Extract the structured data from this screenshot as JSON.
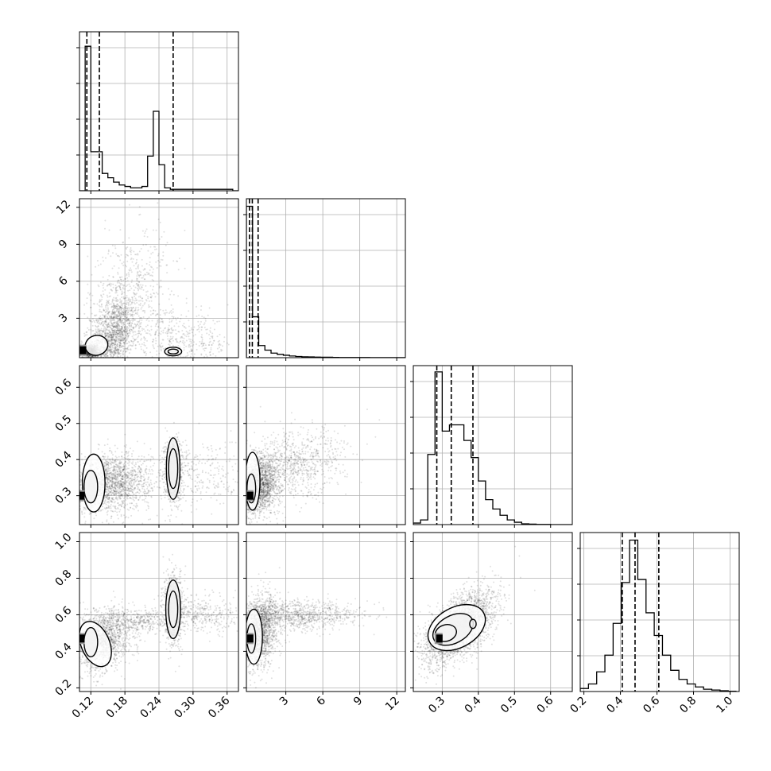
{
  "chart_data": {
    "type": "corner",
    "colors": {
      "axes": "#000000",
      "grid": "#b0b0b0",
      "points": "#000000",
      "background": "#ffffff"
    },
    "grid": true,
    "parameters": [
      {
        "index": 0,
        "range": [
          0.1,
          0.38
        ],
        "ticks": [
          "0.12",
          "0.18",
          "0.24",
          "0.30",
          "0.36"
        ],
        "tick_values": [
          0.12,
          0.18,
          0.24,
          0.3,
          0.36
        ]
      },
      {
        "index": 1,
        "range": [
          -0.2,
          12.7
        ],
        "ticks": [
          "3",
          "6",
          "9",
          "12"
        ],
        "tick_values": [
          3,
          6,
          9,
          12
        ]
      },
      {
        "index": 2,
        "range": [
          0.22,
          0.66
        ],
        "ticks": [
          "0.3",
          "0.4",
          "0.5",
          "0.6"
        ],
        "tick_values": [
          0.3,
          0.4,
          0.5,
          0.6
        ]
      },
      {
        "index": 3,
        "range": [
          0.18,
          1.05
        ],
        "ticks": [
          "0.2",
          "0.4",
          "0.6",
          "0.8",
          "1.0"
        ],
        "tick_values": [
          0.2,
          0.4,
          0.6,
          0.8,
          1.0
        ]
      }
    ],
    "histograms": [
      {
        "param": 0,
        "bin_edges": [
          0.1,
          0.11,
          0.12,
          0.13,
          0.14,
          0.15,
          0.16,
          0.17,
          0.18,
          0.19,
          0.2,
          0.21,
          0.22,
          0.23,
          0.24,
          0.25,
          0.26,
          0.27,
          0.28,
          0.29,
          0.3,
          0.31,
          0.32,
          0.33,
          0.34,
          0.35,
          0.36,
          0.37,
          0.38
        ],
        "counts": [
          0,
          100,
          27,
          27,
          12,
          9,
          6,
          4,
          3,
          2,
          2,
          3,
          24,
          55,
          18,
          2,
          1,
          1,
          1,
          1,
          1,
          1,
          1,
          1,
          1,
          1,
          1,
          0
        ],
        "quantiles": [
          0.113,
          0.135,
          0.265
        ],
        "ymax": 110
      },
      {
        "param": 1,
        "bin_edges": [
          -0.2,
          0.3,
          0.8,
          1.3,
          1.8,
          2.3,
          2.8,
          3.3,
          3.8,
          4.3,
          4.8,
          5.3,
          5.8,
          6.3,
          6.8,
          7.3,
          7.8,
          8.3,
          8.8,
          9.3,
          9.8,
          10.3,
          10.8,
          11.3,
          11.8,
          12.3,
          12.7
        ],
        "counts": [
          100,
          27,
          8,
          5,
          3,
          2.2,
          1.6,
          1.1,
          0.8,
          0.6,
          0.5,
          0.4,
          0.3,
          0.3,
          0.2,
          0.1,
          0.1,
          0.1,
          0.1,
          0.1,
          0.05,
          0.05,
          0.05,
          0.05,
          0.05,
          0.05
        ],
        "quantiles": [
          0.05,
          0.28,
          0.75
        ],
        "ymax": 105
      },
      {
        "param": 2,
        "bin_edges": [
          0.22,
          0.24,
          0.26,
          0.28,
          0.3,
          0.32,
          0.34,
          0.36,
          0.38,
          0.4,
          0.42,
          0.44,
          0.46,
          0.48,
          0.5,
          0.52,
          0.54,
          0.56,
          0.58,
          0.6,
          0.62,
          0.64,
          0.66
        ],
        "counts": [
          1,
          3,
          45,
          98,
          60,
          64,
          64,
          54,
          43,
          28,
          16,
          10,
          6,
          3,
          1.5,
          0.5,
          0.3,
          0.1,
          0.1,
          0,
          0,
          0
        ],
        "quantiles": [
          0.285,
          0.325,
          0.385
        ],
        "ymax": 102
      },
      {
        "param": 3,
        "bin_edges": [
          0.18,
          0.225,
          0.27,
          0.315,
          0.36,
          0.405,
          0.45,
          0.495,
          0.54,
          0.585,
          0.63,
          0.675,
          0.72,
          0.765,
          0.81,
          0.855,
          0.9,
          0.945,
          0.99,
          1.035
        ],
        "counts": [
          2,
          5,
          13,
          24,
          45,
          72,
          100,
          74,
          52,
          37,
          24,
          14,
          8,
          5,
          3,
          1.5,
          1,
          0.5,
          0.2
        ],
        "quantiles": [
          0.41,
          0.48,
          0.61
        ],
        "ymax": 105
      }
    ],
    "scatter_panels": [
      {
        "x_param": 0,
        "y_param": 1,
        "clusters": [
          {
            "cx": 0.16,
            "cy": 1.5,
            "sx": 0.02,
            "sy": 1.6,
            "n": 1400,
            "rho": 0.35
          },
          {
            "cx": 0.185,
            "cy": 5.0,
            "sx": 0.035,
            "sy": 2.6,
            "n": 600,
            "rho": 0.3
          },
          {
            "cx": 0.12,
            "cy": 0.3,
            "sx": 0.01,
            "sy": 0.3,
            "n": 800,
            "rho": 0
          },
          {
            "cx": 0.27,
            "cy": 1.2,
            "sx": 0.05,
            "sy": 1.2,
            "n": 500,
            "rho": -0.2
          }
        ],
        "contours": [
          {
            "cx": 0.13,
            "cy": 0.8,
            "rx": 0.02,
            "ry": 0.8,
            "rot": 0.25
          },
          {
            "cx": 0.265,
            "cy": 0.3,
            "rx": 0.015,
            "ry": 0.35,
            "rot": 0
          },
          {
            "cx": 0.265,
            "cy": 0.3,
            "rx": 0.009,
            "ry": 0.2,
            "rot": 0
          }
        ],
        "density_peaks": [
          {
            "x": 0.105,
            "y": 0.4,
            "fill": "#000000"
          }
        ]
      },
      {
        "x_param": 0,
        "y_param": 2,
        "clusters": [
          {
            "cx": 0.155,
            "cy": 0.335,
            "sx": 0.035,
            "sy": 0.04,
            "n": 1800,
            "rho": 0.1
          },
          {
            "cx": 0.265,
            "cy": 0.37,
            "sx": 0.008,
            "sy": 0.045,
            "n": 700,
            "rho": 0
          },
          {
            "cx": 0.31,
            "cy": 0.36,
            "sx": 0.04,
            "sy": 0.05,
            "n": 300,
            "rho": 0
          }
        ],
        "contours": [
          {
            "cx": 0.125,
            "cy": 0.335,
            "rx": 0.02,
            "ry": 0.08,
            "rot": 0
          },
          {
            "cx": 0.12,
            "cy": 0.325,
            "rx": 0.012,
            "ry": 0.045,
            "rot": 0
          },
          {
            "cx": 0.265,
            "cy": 0.375,
            "rx": 0.012,
            "ry": 0.085,
            "rot": 0
          },
          {
            "cx": 0.265,
            "cy": 0.375,
            "rx": 0.008,
            "ry": 0.055,
            "rot": 0
          }
        ],
        "density_peaks": [
          {
            "x": 0.102,
            "y": 0.3,
            "fill": "#000000"
          }
        ]
      },
      {
        "x_param": 1,
        "y_param": 2,
        "clusters": [
          {
            "cx": 0.8,
            "cy": 0.33,
            "sx": 0.8,
            "sy": 0.04,
            "n": 1800,
            "rho": 0.2
          },
          {
            "cx": 3.5,
            "cy": 0.38,
            "sx": 2.2,
            "sy": 0.05,
            "n": 900,
            "rho": 0.3
          }
        ],
        "contours": [
          {
            "cx": 0.3,
            "cy": 0.34,
            "rx": 0.6,
            "ry": 0.08,
            "rot": 0
          },
          {
            "cx": 0.2,
            "cy": 0.32,
            "rx": 0.35,
            "ry": 0.04,
            "rot": 0
          }
        ],
        "density_peaks": [
          {
            "x": 0.05,
            "y": 0.3,
            "fill": "#000000"
          }
        ]
      },
      {
        "x_param": 0,
        "y_param": 3,
        "clusters": [
          {
            "cx": 0.14,
            "cy": 0.46,
            "sx": 0.025,
            "sy": 0.08,
            "n": 1500,
            "rho": 0.2
          },
          {
            "cx": 0.265,
            "cy": 0.63,
            "sx": 0.009,
            "sy": 0.1,
            "n": 700,
            "rho": 0
          },
          {
            "cx": 0.31,
            "cy": 0.6,
            "sx": 0.04,
            "sy": 0.05,
            "n": 400,
            "rho": 0
          },
          {
            "cx": 0.2,
            "cy": 0.57,
            "sx": 0.035,
            "sy": 0.03,
            "n": 400,
            "rho": 0
          }
        ],
        "contours": [
          {
            "cx": 0.128,
            "cy": 0.44,
            "rx": 0.025,
            "ry": 0.13,
            "rot": 0.4
          },
          {
            "cx": 0.12,
            "cy": 0.45,
            "rx": 0.012,
            "ry": 0.08,
            "rot": 0
          },
          {
            "cx": 0.265,
            "cy": 0.63,
            "rx": 0.013,
            "ry": 0.16,
            "rot": 0
          },
          {
            "cx": 0.265,
            "cy": 0.63,
            "rx": 0.008,
            "ry": 0.1,
            "rot": 0
          }
        ],
        "density_peaks": [
          {
            "x": 0.102,
            "y": 0.47,
            "fill": "#000000"
          }
        ]
      },
      {
        "x_param": 1,
        "y_param": 3,
        "clusters": [
          {
            "cx": 0.8,
            "cy": 0.5,
            "sx": 0.8,
            "sy": 0.1,
            "n": 1800,
            "rho": 0.3
          },
          {
            "cx": 4.0,
            "cy": 0.6,
            "sx": 2.5,
            "sy": 0.04,
            "n": 900,
            "rho": 0
          }
        ],
        "contours": [
          {
            "cx": 0.4,
            "cy": 0.48,
            "rx": 0.7,
            "ry": 0.15,
            "rot": 0
          },
          {
            "cx": 0.2,
            "cy": 0.47,
            "rx": 0.35,
            "ry": 0.08,
            "rot": 0
          }
        ],
        "density_peaks": [
          {
            "x": 0.05,
            "y": 0.47,
            "fill": "#000000"
          }
        ]
      },
      {
        "x_param": 2,
        "y_param": 3,
        "clusters": [
          {
            "cx": 0.345,
            "cy": 0.53,
            "sx": 0.05,
            "sy": 0.1,
            "n": 2600,
            "rho": 0.6
          }
        ],
        "contours": [
          {
            "cx": 0.34,
            "cy": 0.53,
            "rx": 0.085,
            "ry": 0.11,
            "rot": 0.5
          },
          {
            "cx": 0.33,
            "cy": 0.52,
            "rx": 0.06,
            "ry": 0.075,
            "rot": 0.5
          },
          {
            "cx": 0.31,
            "cy": 0.5,
            "rx": 0.03,
            "ry": 0.045,
            "rot": 0.3
          },
          {
            "cx": 0.385,
            "cy": 0.55,
            "rx": 0.009,
            "ry": 0.025,
            "rot": 0
          }
        ],
        "density_peaks": [
          {
            "x": 0.29,
            "y": 0.47,
            "fill": "#000000"
          }
        ]
      }
    ]
  }
}
